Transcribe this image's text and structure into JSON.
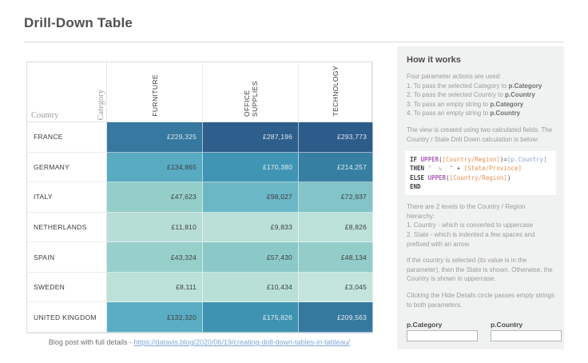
{
  "page": {
    "title": "Drill-Down Table",
    "footer_prefix": "Blog post with full details - ",
    "footer_link": "https://datavis.blog/2020/06/19/creating-drill-down-tables-in-tableau/"
  },
  "chart_data": {
    "type": "heatmap",
    "title": "Drill-Down Table",
    "x_categories": [
      "FURNITURE",
      "OFFICE SUPPLIES",
      "TECHNOLOGY"
    ],
    "y_categories": [
      "FRANCE",
      "GERMANY",
      "ITALY",
      "NETHERLANDS",
      "SPAIN",
      "SWEDEN",
      "UNITED KINGDOM"
    ],
    "values": [
      [
        229325,
        287196,
        293773
      ],
      [
        134865,
        170380,
        214257
      ],
      [
        47623,
        98027,
        72937
      ],
      [
        11810,
        9833,
        8826
      ],
      [
        43324,
        57430,
        48134
      ],
      [
        8111,
        10434,
        3045
      ],
      [
        132320,
        175826,
        209563
      ]
    ],
    "value_format": "£#,##0",
    "color_scale": {
      "low_color": "#c3e5dc",
      "high_color": "#2d5c8a",
      "min": 3045,
      "max": 293773
    },
    "legend": "none",
    "grid": "cell borders light"
  },
  "table": {
    "row_axis_label": "Country",
    "col_axis_label": "Category",
    "columns": [
      "FURNITURE",
      "OFFICE SUPPLIES",
      "TECHNOLOGY"
    ],
    "rows": [
      {
        "country": "FRANCE",
        "display": [
          "£229,325",
          "£287,196",
          "£293,773"
        ],
        "colors": [
          "#36789f",
          "#2e5e8c",
          "#2d5c8a"
        ],
        "text_colors": [
          "#dce7f0",
          "#dce7f0",
          "#dce7f0"
        ]
      },
      {
        "country": "GERMANY",
        "display": [
          "£134,865",
          "£170,380",
          "£214,257"
        ],
        "colors": [
          "#58abc1",
          "#4095b4",
          "#377fa2"
        ],
        "text_colors": [
          "#3f3f3f",
          "#e2ecf2",
          "#e2ecf2"
        ]
      },
      {
        "country": "ITALY",
        "display": [
          "£47,623",
          "£98,027",
          "£72,937"
        ],
        "colors": [
          "#94cec9",
          "#6bb7c6",
          "#82c4c8"
        ],
        "text_colors": [
          "#3f3f3f",
          "#3f3f3f",
          "#3f3f3f"
        ]
      },
      {
        "country": "NETHERLANDS",
        "display": [
          "£11,810",
          "£9,833",
          "£8,826"
        ],
        "colors": [
          "#b7ded6",
          "#bae0d7",
          "#bce1d8"
        ],
        "text_colors": [
          "#3f3f3f",
          "#3f3f3f",
          "#3f3f3f"
        ]
      },
      {
        "country": "SPAIN",
        "display": [
          "£43,324",
          "£57,430",
          "£48,134"
        ],
        "colors": [
          "#97cfca",
          "#8bc9c9",
          "#93cdc9"
        ],
        "text_colors": [
          "#3f3f3f",
          "#3f3f3f",
          "#3f3f3f"
        ]
      },
      {
        "country": "SWEDEN",
        "display": [
          "£8,111",
          "£10,434",
          "£3,045"
        ],
        "colors": [
          "#bce1d8",
          "#b9e0d7",
          "#c3e5dc"
        ],
        "text_colors": [
          "#3f3f3f",
          "#3f3f3f",
          "#3f3f3f"
        ]
      },
      {
        "country": "UNITED KINGDOM",
        "display": [
          "£132,320",
          "£175,826",
          "£209,563"
        ],
        "colors": [
          "#5aadc2",
          "#3f93b2",
          "#36799f"
        ],
        "text_colors": [
          "#3f3f3f",
          "#e2ecf2",
          "#e2ecf2"
        ]
      }
    ]
  },
  "panel": {
    "heading": "How it works",
    "intro": "Four parameter actions are used:",
    "actions": [
      {
        "pre": "1. To pass the selected Category to ",
        "bold": "p.Category"
      },
      {
        "pre": "2. To pass the selected Country to ",
        "bold": "p.Country"
      },
      {
        "pre": "3. To pass an empty string to ",
        "bold": "p.Category"
      },
      {
        "pre": "4. To pass an empty string to ",
        "bold": "p.Country"
      }
    ],
    "calc_note": "The view is created using two calculated fields. The Country / State Drill Down calculation is below:",
    "code": {
      "l1_kw": "IF ",
      "l1_fn": "UPPER",
      "l1_p1": "(",
      "l1_field": "[Country/Region]",
      "l1_p2": ")=",
      "l1_param": "[p.Country]",
      "l2_kw": "THEN ",
      "l2_str": "\"  ↳  \"",
      "l2_p1": " + ",
      "l2_field": "[State/Province]",
      "l3_kw": "ELSE ",
      "l3_fn": "UPPER",
      "l3_p1": "(",
      "l3_field": "[Country/Region]",
      "l3_p2": ")",
      "l4_kw": "END"
    },
    "hierarchy_note": "There are 2 levels to the Country / Region hierarchy:",
    "hierarchy_items": [
      "1. Country - which is converted to uppercase",
      "2. State - which is indented a few spaces and prefixed with an arrow"
    ],
    "selection_note": "If the country is selected (its value is in the parameter), then the State is shown.  Otherwise, the Country is shown in uppercase.",
    "hide_note": "Clicking the Hide Details circle passes empty strings to both parameters.",
    "params": [
      {
        "label": "p.Category",
        "value": ""
      },
      {
        "label": "p.Country",
        "value": ""
      }
    ]
  }
}
